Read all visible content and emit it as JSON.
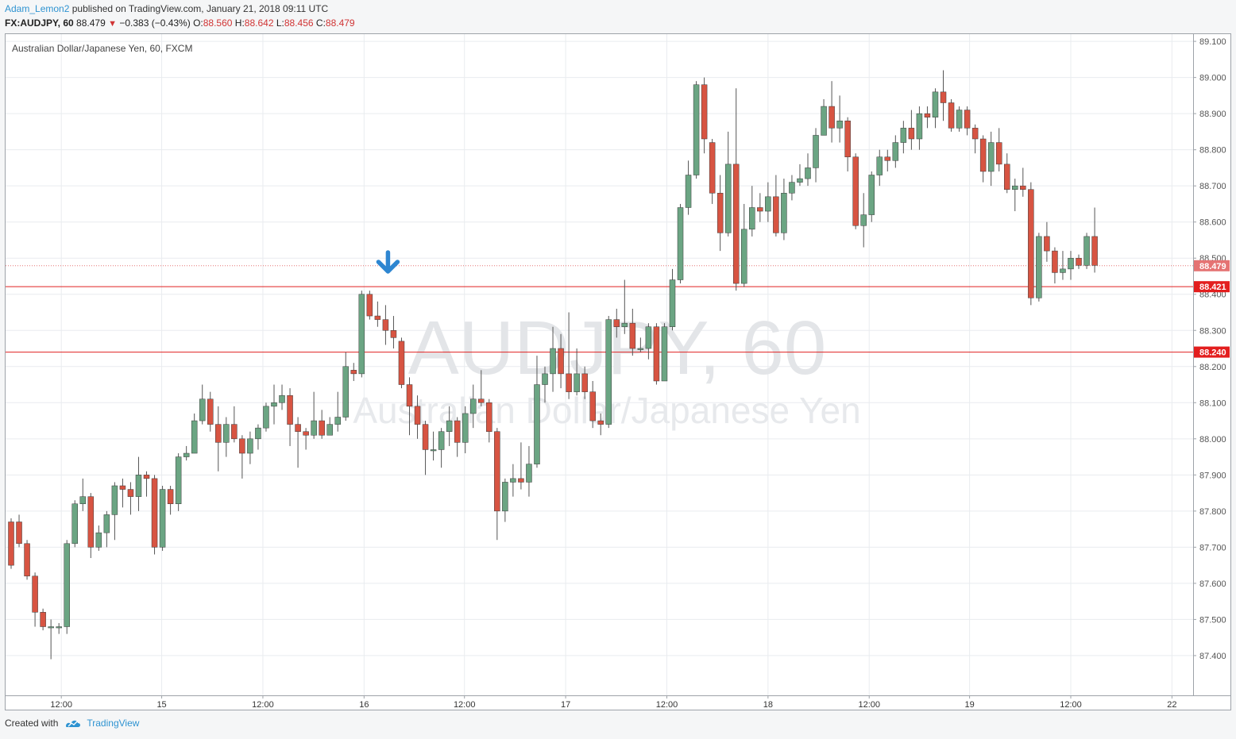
{
  "header": {
    "user": "Adam_Lemon2",
    "published": " published on TradingView.com, January 21, 2018 09:11 UTC",
    "symbol": "FX:AUDJPY, 60",
    "last": "88.479",
    "change": "−0.383 (−0.43%)",
    "o_label": "O:",
    "o": "88.560",
    "h_label": "H:",
    "h": "88.642",
    "l_label": "L:",
    "l": "88.456",
    "c_label": "C:",
    "c": "88.479"
  },
  "footer": {
    "created_with": "Created with",
    "brand": "TradingView"
  },
  "chart_data": {
    "type": "candlestick",
    "title": "Australian Dollar/Japanese Yen, 60, FXCM",
    "watermark_symbol": "AUDJPY, 60",
    "watermark_name": "Australian Dollar/Japanese Yen",
    "ylim": [
      87.29,
      89.12
    ],
    "y_ticks": [
      "87.400",
      "87.500",
      "87.600",
      "87.700",
      "87.800",
      "87.900",
      "88.000",
      "88.100",
      "88.200",
      "88.300",
      "88.400",
      "88.500",
      "88.600",
      "88.700",
      "88.800",
      "88.900",
      "89.000",
      "89.100"
    ],
    "x_ticks": [
      {
        "label": "12:00",
        "i": 6.3
      },
      {
        "label": "15",
        "i": 18.9
      },
      {
        "label": "12:00",
        "i": 31.6
      },
      {
        "label": "16",
        "i": 44.3
      },
      {
        "label": "12:00",
        "i": 56.9
      },
      {
        "label": "17",
        "i": 69.6
      },
      {
        "label": "12:00",
        "i": 82.3
      },
      {
        "label": "18",
        "i": 95
      },
      {
        "label": "12:00",
        "i": 107.7
      },
      {
        "label": "19",
        "i": 120.3
      },
      {
        "label": "12:00",
        "i": 133.0
      },
      {
        "label": "22",
        "i": 145.7
      }
    ],
    "grid": true,
    "colors": {
      "up": "#6ba583",
      "down": "#d75442",
      "wick": "#555555",
      "level": "#e02020",
      "grid": "#e9ecef",
      "current": "#e57373"
    },
    "levels": [
      88.421,
      88.24
    ],
    "level_labels": [
      "88.421",
      "88.240"
    ],
    "current_price": 88.479,
    "current_label": "88.479",
    "arrow_marker": {
      "i": 47.3,
      "price": 88.45
    },
    "candles": [
      [
        87.77,
        87.65,
        87.78,
        87.64
      ],
      [
        87.77,
        87.71,
        87.79,
        87.7
      ],
      [
        87.71,
        87.62,
        87.72,
        87.61
      ],
      [
        87.62,
        87.52,
        87.63,
        87.48
      ],
      [
        87.52,
        87.48,
        87.53,
        87.47
      ],
      [
        87.48,
        87.48,
        87.5,
        87.39
      ],
      [
        87.48,
        87.48,
        87.49,
        87.46
      ],
      [
        87.48,
        87.71,
        87.72,
        87.46
      ],
      [
        87.71,
        87.82,
        87.83,
        87.7
      ],
      [
        87.82,
        87.84,
        87.89,
        87.8
      ],
      [
        87.84,
        87.7,
        87.85,
        87.67
      ],
      [
        87.7,
        87.74,
        87.76,
        87.69
      ],
      [
        87.74,
        87.79,
        87.8,
        87.7
      ],
      [
        87.79,
        87.87,
        87.88,
        87.72
      ],
      [
        87.87,
        87.86,
        87.89,
        87.81
      ],
      [
        87.86,
        87.84,
        87.88,
        87.79
      ],
      [
        87.84,
        87.9,
        87.95,
        87.8
      ],
      [
        87.9,
        87.89,
        87.91,
        87.84
      ],
      [
        87.89,
        87.7,
        87.9,
        87.68
      ],
      [
        87.7,
        87.86,
        87.87,
        87.69
      ],
      [
        87.86,
        87.82,
        87.87,
        87.79
      ],
      [
        87.82,
        87.95,
        87.96,
        87.8
      ],
      [
        87.95,
        87.96,
        87.98,
        87.94
      ],
      [
        87.96,
        88.05,
        88.07,
        87.96
      ],
      [
        88.05,
        88.11,
        88.15,
        88.04
      ],
      [
        88.11,
        88.04,
        88.13,
        88.02
      ],
      [
        88.04,
        87.99,
        88.09,
        87.91
      ],
      [
        87.99,
        88.04,
        88.06,
        87.95
      ],
      [
        88.04,
        88.0,
        88.09,
        87.99
      ],
      [
        88.0,
        87.96,
        88.01,
        87.89
      ],
      [
        87.96,
        88.0,
        88.02,
        87.93
      ],
      [
        88.0,
        88.03,
        88.04,
        87.97
      ],
      [
        88.03,
        88.09,
        88.1,
        88.02
      ],
      [
        88.09,
        88.1,
        88.15,
        88.04
      ],
      [
        88.1,
        88.12,
        88.15,
        88.08
      ],
      [
        88.12,
        88.04,
        88.14,
        87.98
      ],
      [
        88.04,
        88.02,
        88.06,
        87.92
      ],
      [
        88.02,
        88.01,
        88.03,
        87.97
      ],
      [
        88.01,
        88.05,
        88.13,
        88.0
      ],
      [
        88.05,
        88.01,
        88.08,
        88.0
      ],
      [
        88.01,
        88.04,
        88.06,
        88.01
      ],
      [
        88.04,
        88.06,
        88.13,
        88.02
      ],
      [
        88.06,
        88.2,
        88.24,
        88.05
      ],
      [
        88.19,
        88.18,
        88.21,
        88.16
      ],
      [
        88.18,
        88.4,
        88.41,
        88.17
      ],
      [
        88.4,
        88.34,
        88.41,
        88.33
      ],
      [
        88.34,
        88.33,
        88.38,
        88.31
      ],
      [
        88.33,
        88.3,
        88.37,
        88.26
      ],
      [
        88.3,
        88.28,
        88.34,
        88.25
      ],
      [
        88.27,
        88.15,
        88.28,
        88.14
      ],
      [
        88.15,
        88.09,
        88.17,
        88.01
      ],
      [
        88.09,
        88.04,
        88.12,
        88.0
      ],
      [
        88.04,
        87.97,
        88.05,
        87.9
      ],
      [
        87.97,
        87.97,
        88.02,
        87.94
      ],
      [
        87.97,
        88.02,
        88.03,
        87.92
      ],
      [
        88.02,
        88.05,
        88.09,
        87.98
      ],
      [
        88.05,
        87.99,
        88.06,
        87.95
      ],
      [
        87.99,
        88.07,
        88.09,
        87.96
      ],
      [
        88.07,
        88.11,
        88.15,
        88.03
      ],
      [
        88.11,
        88.1,
        88.19,
        88.09
      ],
      [
        88.1,
        88.02,
        88.11,
        87.99
      ],
      [
        88.02,
        87.8,
        88.03,
        87.72
      ],
      [
        87.8,
        87.88,
        87.89,
        87.77
      ],
      [
        87.88,
        87.89,
        87.93,
        87.84
      ],
      [
        87.89,
        87.88,
        87.99,
        87.86
      ],
      [
        87.88,
        87.93,
        87.98,
        87.84
      ],
      [
        87.93,
        88.15,
        88.23,
        87.92
      ],
      [
        88.15,
        88.18,
        88.2,
        88.1
      ],
      [
        88.18,
        88.25,
        88.31,
        88.13
      ],
      [
        88.25,
        88.18,
        88.29,
        88.14
      ],
      [
        88.18,
        88.13,
        88.35,
        88.11
      ],
      [
        88.13,
        88.18,
        88.25,
        88.12
      ],
      [
        88.18,
        88.13,
        88.2,
        88.11
      ],
      [
        88.13,
        88.05,
        88.16,
        88.03
      ],
      [
        88.05,
        88.04,
        88.07,
        88.01
      ],
      [
        88.04,
        88.33,
        88.34,
        88.03
      ],
      [
        88.33,
        88.31,
        88.36,
        88.28
      ],
      [
        88.31,
        88.32,
        88.44,
        88.29
      ],
      [
        88.32,
        88.25,
        88.36,
        88.23
      ],
      [
        88.25,
        88.25,
        88.28,
        88.24
      ],
      [
        88.25,
        88.31,
        88.32,
        88.22
      ],
      [
        88.31,
        88.16,
        88.32,
        88.15
      ],
      [
        88.16,
        88.31,
        88.32,
        88.18
      ],
      [
        88.31,
        88.44,
        88.47,
        88.3
      ],
      [
        88.44,
        88.64,
        88.65,
        88.43
      ],
      [
        88.64,
        88.73,
        88.77,
        88.62
      ],
      [
        88.73,
        88.98,
        88.99,
        88.72
      ],
      [
        88.98,
        88.83,
        89.0,
        88.79
      ],
      [
        88.82,
        88.68,
        88.83,
        88.65
      ],
      [
        88.68,
        88.57,
        88.73,
        88.52
      ],
      [
        88.57,
        88.76,
        88.85,
        88.56
      ],
      [
        88.76,
        88.43,
        88.97,
        88.41
      ],
      [
        88.43,
        88.58,
        88.65,
        88.42
      ],
      [
        88.58,
        88.64,
        88.7,
        88.56
      ],
      [
        88.64,
        88.63,
        88.68,
        88.6
      ],
      [
        88.63,
        88.67,
        88.71,
        88.6
      ],
      [
        88.67,
        88.57,
        88.73,
        88.56
      ],
      [
        88.57,
        88.68,
        88.72,
        88.55
      ],
      [
        88.68,
        88.71,
        88.73,
        88.66
      ],
      [
        88.71,
        88.72,
        88.76,
        88.7
      ],
      [
        88.72,
        88.75,
        88.79,
        88.7
      ],
      [
        88.75,
        88.84,
        88.86,
        88.71
      ],
      [
        88.84,
        88.92,
        88.94,
        88.84
      ],
      [
        88.92,
        88.86,
        88.99,
        88.82
      ],
      [
        88.86,
        88.88,
        88.95,
        88.82
      ],
      [
        88.88,
        88.78,
        88.89,
        88.74
      ],
      [
        88.78,
        88.59,
        88.79,
        88.58
      ],
      [
        88.59,
        88.62,
        88.68,
        88.53
      ],
      [
        88.62,
        88.73,
        88.74,
        88.6
      ],
      [
        88.73,
        88.78,
        88.8,
        88.7
      ],
      [
        88.78,
        88.77,
        88.8,
        88.74
      ],
      [
        88.77,
        88.82,
        88.84,
        88.75
      ],
      [
        88.82,
        88.86,
        88.88,
        88.79
      ],
      [
        88.86,
        88.83,
        88.91,
        88.8
      ],
      [
        88.83,
        88.9,
        88.92,
        88.8
      ],
      [
        88.9,
        88.89,
        88.92,
        88.86
      ],
      [
        88.89,
        88.96,
        88.97,
        88.86
      ],
      [
        88.96,
        88.93,
        89.02,
        88.88
      ],
      [
        88.93,
        88.86,
        88.94,
        88.85
      ],
      [
        88.86,
        88.91,
        88.92,
        88.85
      ],
      [
        88.91,
        88.86,
        88.92,
        88.84
      ],
      [
        88.86,
        88.83,
        88.87,
        88.79
      ],
      [
        88.83,
        88.74,
        88.84,
        88.71
      ],
      [
        88.74,
        88.82,
        88.85,
        88.7
      ],
      [
        88.82,
        88.76,
        88.86,
        88.74
      ],
      [
        88.76,
        88.69,
        88.79,
        88.68
      ],
      [
        88.69,
        88.7,
        88.72,
        88.63
      ],
      [
        88.7,
        88.69,
        88.75,
        88.67
      ],
      [
        88.69,
        88.39,
        88.71,
        88.37
      ],
      [
        88.39,
        88.56,
        88.57,
        88.38
      ],
      [
        88.56,
        88.52,
        88.6,
        88.49
      ],
      [
        88.52,
        88.46,
        88.53,
        88.43
      ],
      [
        88.46,
        88.47,
        88.52,
        88.44
      ],
      [
        88.47,
        88.5,
        88.52,
        88.44
      ],
      [
        88.5,
        88.48,
        88.51,
        88.47
      ],
      [
        88.48,
        88.56,
        88.57,
        88.47
      ],
      [
        88.56,
        88.48,
        88.64,
        88.46
      ]
    ]
  }
}
